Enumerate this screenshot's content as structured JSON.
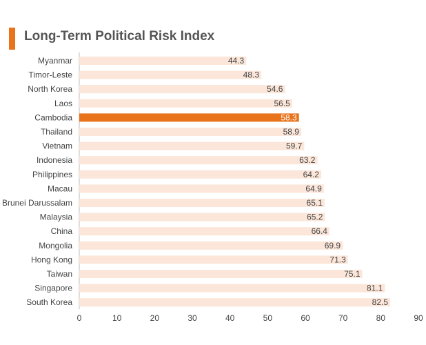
{
  "header": {
    "title": "Long-Term Political Risk Index"
  },
  "colors": {
    "accent": "#e8731a",
    "bar": "#fbe6d9",
    "highlight": "#e8731a",
    "text": "#444444",
    "axis": "#bbbbbb"
  },
  "chart_data": {
    "type": "bar",
    "orientation": "horizontal",
    "title": "Long-Term Political Risk Index",
    "xlabel": "",
    "ylabel": "",
    "categories": [
      "Myanmar",
      "Timor-Leste",
      "North Korea",
      "Laos",
      "Cambodia",
      "Thailand",
      "Vietnam",
      "Indonesia",
      "Philippines",
      "Macau",
      "Brunei Darussalam",
      "Malaysia",
      "China",
      "Mongolia",
      "Hong Kong",
      "Taiwan",
      "Singapore",
      "South Korea"
    ],
    "values": [
      44.3,
      48.3,
      54.6,
      56.5,
      58.3,
      58.9,
      59.7,
      63.2,
      64.2,
      64.9,
      65.1,
      65.2,
      66.4,
      69.9,
      71.3,
      75.1,
      81.1,
      82.5
    ],
    "data_labels": [
      "44.3",
      "48.3",
      "54.6",
      "56.5",
      "58.3",
      "58.9",
      "59.7",
      "63.2",
      "64.2",
      "64.9",
      "65.1",
      "65.2",
      "66.4",
      "69.9",
      "71.3",
      "75.1",
      "81.1",
      "82.5"
    ],
    "highlight": "Cambodia",
    "xlim": [
      0,
      90
    ],
    "xticks": [
      "0",
      "10",
      "20",
      "30",
      "40",
      "50",
      "60",
      "70",
      "80",
      "90"
    ],
    "grid": false,
    "legend": "none"
  }
}
